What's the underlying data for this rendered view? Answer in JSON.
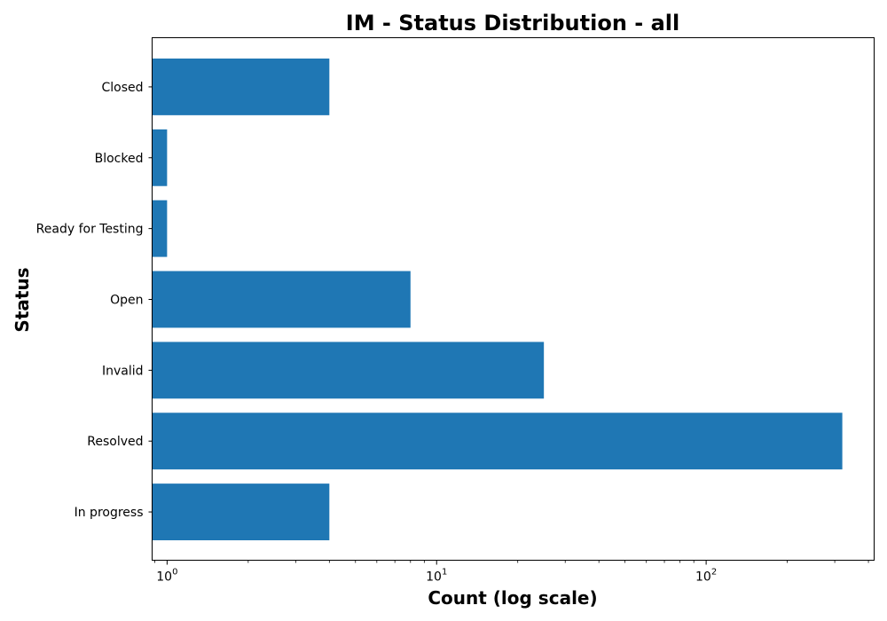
{
  "chart_data": {
    "type": "bar",
    "orientation": "horizontal",
    "title": "IM - Status Distribution - all",
    "xlabel": "Count (log scale)",
    "ylabel": "Status",
    "x_scale": "log",
    "xlim": [
      0.88,
      420
    ],
    "x_tick_labels": [
      {
        "base": "10",
        "exp": "0",
        "value": 1
      },
      {
        "base": "10",
        "exp": "1",
        "value": 10
      },
      {
        "base": "10",
        "exp": "2",
        "value": 100
      }
    ],
    "categories": [
      "In progress",
      "Resolved",
      "Invalid",
      "Open",
      "Ready for Testing",
      "Blocked",
      "Closed"
    ],
    "values": [
      4,
      320,
      25,
      8,
      1,
      1,
      4
    ],
    "bar_color": "#1f77b4",
    "grid": false,
    "legend": false
  }
}
